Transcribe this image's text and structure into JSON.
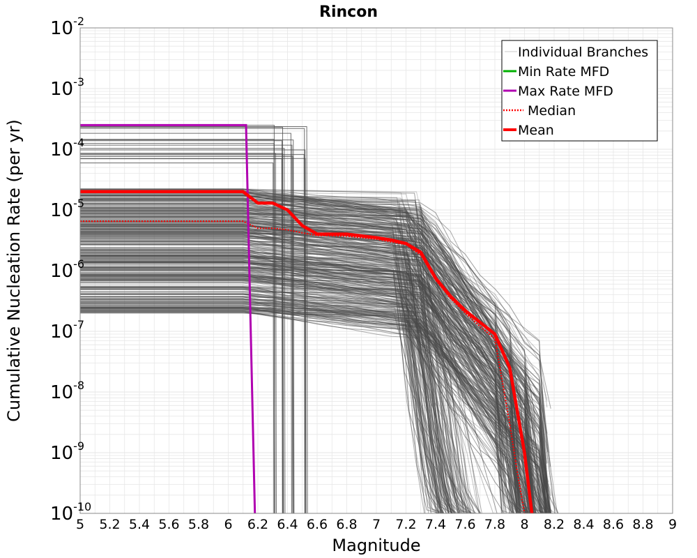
{
  "chart_data": {
    "type": "line",
    "title": "Rincon",
    "xlabel": "Magnitude",
    "ylabel": "Cumulative Nucleation Rate (per yr)",
    "xlim": [
      5,
      9
    ],
    "ylim_log10": [
      -10,
      -2
    ],
    "x_ticks": [
      "5",
      "5.2",
      "5.4",
      "5.6",
      "5.8",
      "6",
      "6.2",
      "6.4",
      "6.6",
      "6.8",
      "7",
      "7.2",
      "7.4",
      "7.6",
      "7.8",
      "8",
      "8.2",
      "8.4",
      "8.6",
      "8.8",
      "9"
    ],
    "y_ticks": [
      {
        "base": "10",
        "exp": "-2"
      },
      {
        "base": "10",
        "exp": "-3"
      },
      {
        "base": "10",
        "exp": "-4"
      },
      {
        "base": "10",
        "exp": "-5"
      },
      {
        "base": "10",
        "exp": "-6"
      },
      {
        "base": "10",
        "exp": "-7"
      },
      {
        "base": "10",
        "exp": "-8"
      },
      {
        "base": "10",
        "exp": "-9"
      },
      {
        "base": "10",
        "exp": "-10"
      }
    ],
    "legend": {
      "position": "top-right",
      "entries": [
        {
          "label": "Individual Branches",
          "color": "#c8c8c8",
          "style": "solid"
        },
        {
          "label": "Min Rate MFD",
          "color": "#00b000",
          "style": "solid"
        },
        {
          "label": "Max Rate MFD",
          "color": "#b000b0",
          "style": "solid"
        },
        {
          "label": "Median",
          "color": "#ff0000",
          "style": "dotted"
        },
        {
          "label": "Mean",
          "color": "#ff0000",
          "style": "solid"
        }
      ]
    },
    "series": [
      {
        "name": "Mean",
        "color": "#ff0000",
        "x": [
          5.0,
          6.1,
          6.2,
          6.3,
          6.4,
          6.5,
          6.6,
          6.8,
          7.0,
          7.1,
          7.2,
          7.3,
          7.4,
          7.5,
          7.6,
          7.7,
          7.8,
          7.9,
          8.0,
          8.05
        ],
        "y": [
          2e-05,
          2e-05,
          1.3e-05,
          1.3e-05,
          1e-05,
          5.5e-06,
          4e-06,
          4e-06,
          3.5e-06,
          3.2e-06,
          2.8e-06,
          2e-06,
          7.5e-07,
          3.8e-07,
          2.2e-07,
          1.4e-07,
          9e-08,
          2.5e-08,
          1e-09,
          1e-10
        ]
      },
      {
        "name": "Median",
        "color": "#ff0000",
        "x": [
          5.0,
          6.1,
          6.2,
          6.3,
          6.4,
          6.5,
          6.6,
          6.8,
          7.0,
          7.2,
          7.3,
          7.4,
          7.5,
          7.6,
          7.7,
          7.8,
          7.9,
          7.95,
          8.0
        ],
        "y": [
          6.5e-06,
          6.5e-06,
          5e-06,
          5e-06,
          4.7e-06,
          4.2e-06,
          3.8e-06,
          3.7e-06,
          3.3e-06,
          2.7e-06,
          1.8e-06,
          7e-07,
          3.5e-07,
          2e-07,
          1.2e-07,
          7.5e-08,
          3e-09,
          5e-10,
          1e-10
        ]
      },
      {
        "name": "Max Rate MFD",
        "color": "#b000b0",
        "x": [
          5.0,
          6.12,
          6.18
        ],
        "y": [
          0.00025,
          0.00025,
          1e-10
        ]
      },
      {
        "name": "Individual Branches",
        "color": "#4a4a4a",
        "description_count": 440
      }
    ]
  }
}
